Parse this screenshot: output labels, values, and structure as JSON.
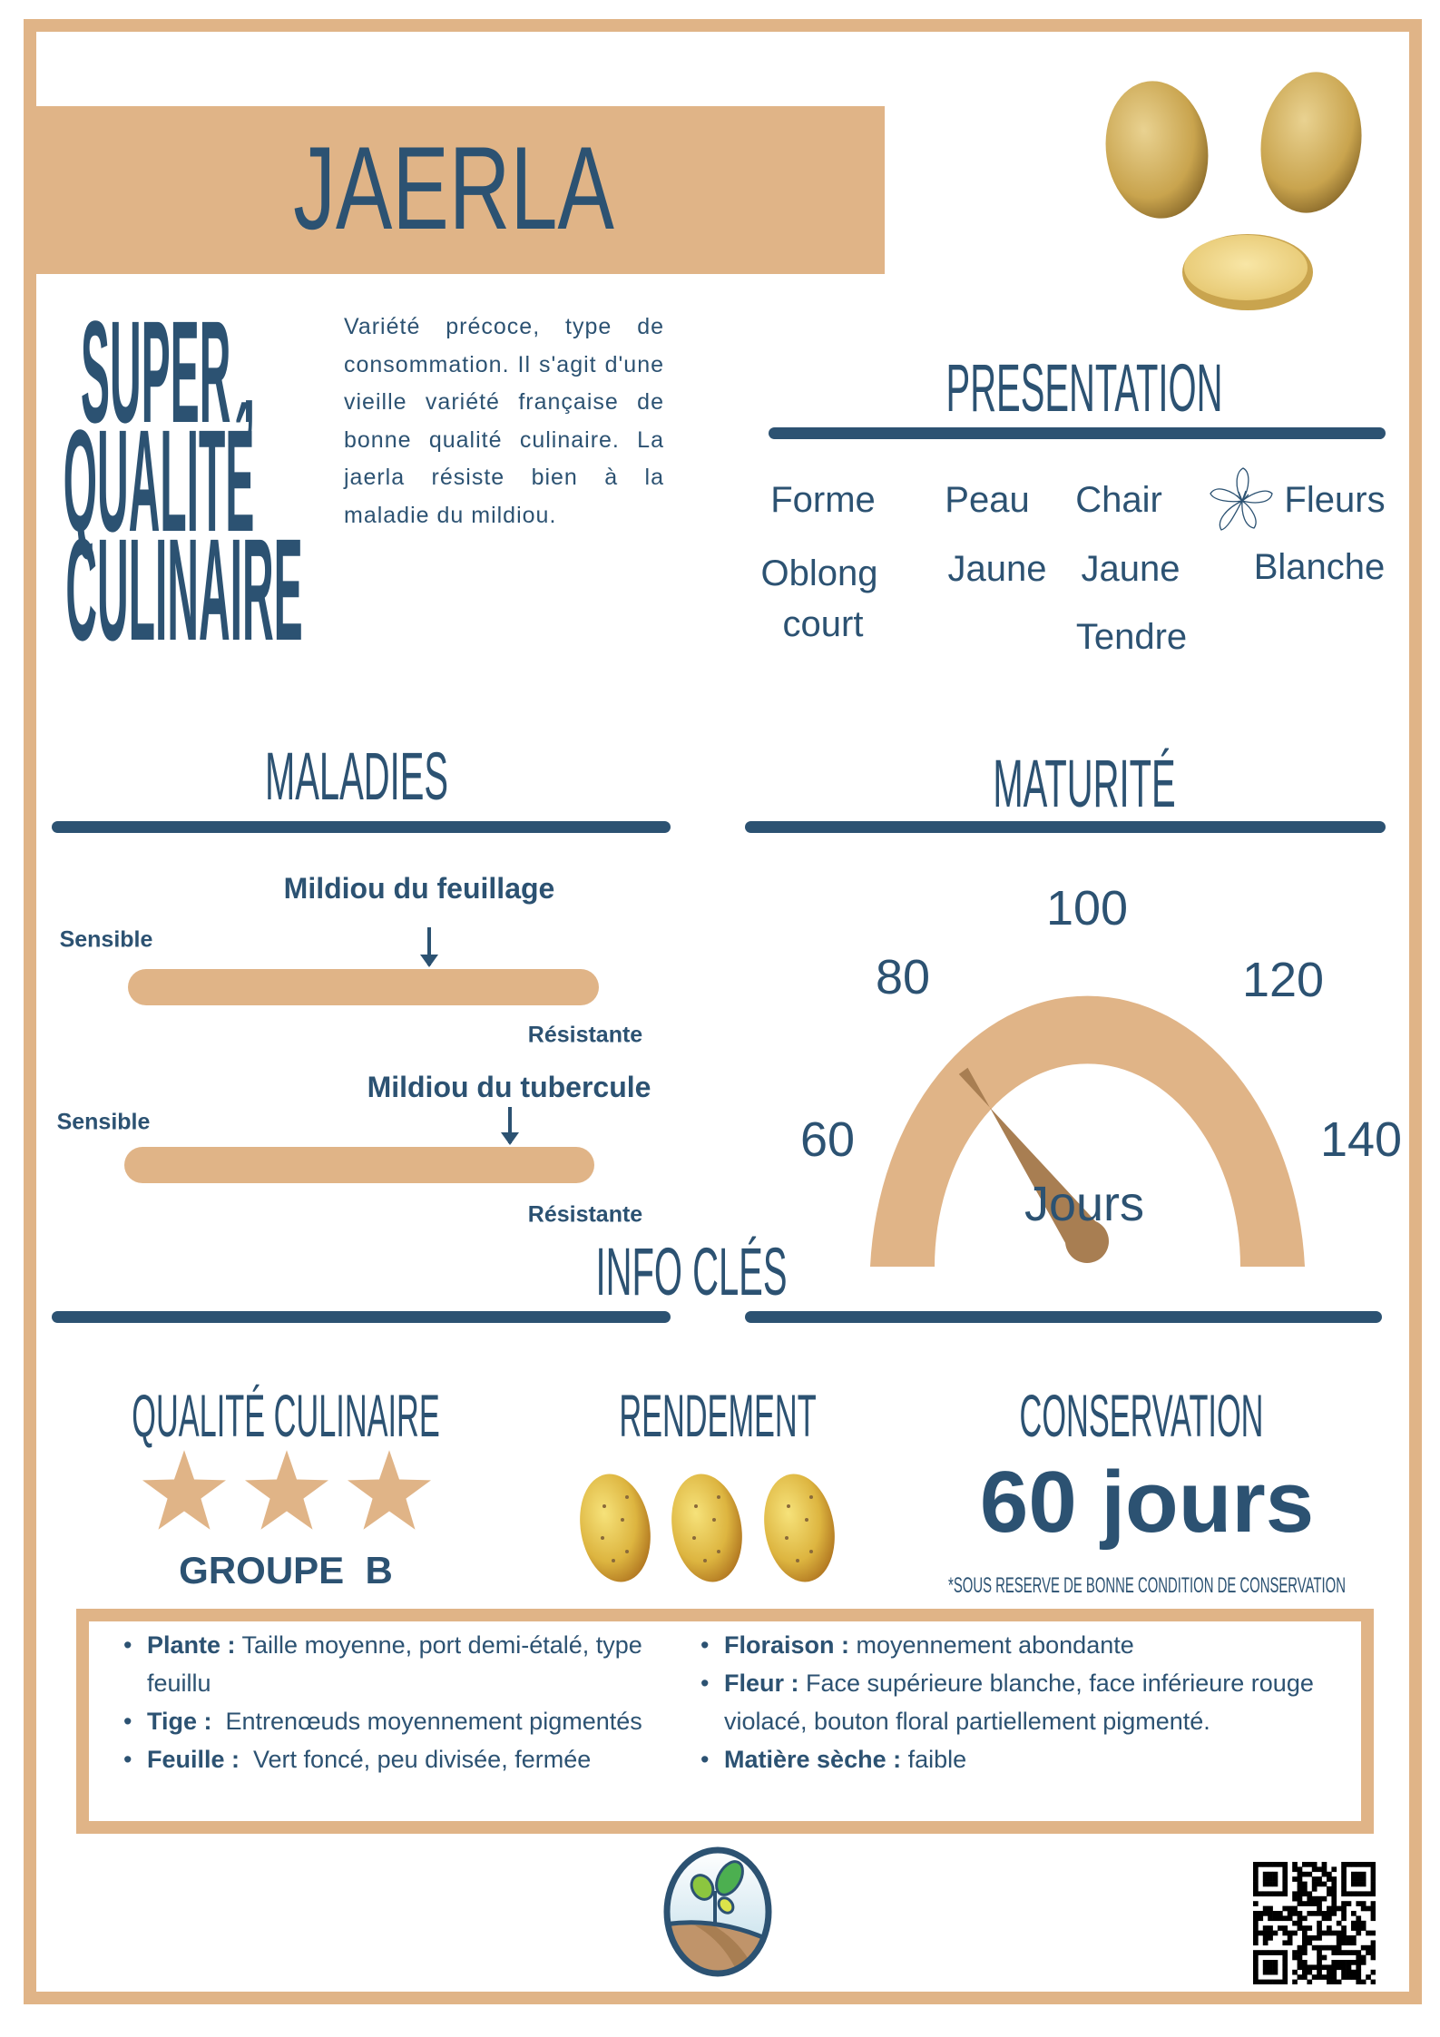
{
  "title": "JAERLA",
  "slogan": {
    "line1": "SUPER ,",
    "line2": "QUALITÉ",
    "line3": "CULINAIRE"
  },
  "description": "Variété précoce, type de consommation. Il s'agit d'une vieille variété française de bonne qualité culinaire. La jaerla résiste bien à la maladie du mildiou.",
  "presentation": {
    "heading": "PRESENTATION",
    "forme": {
      "label": "Forme",
      "value1": "Oblong",
      "value2": "court"
    },
    "peau": {
      "label": "Peau",
      "value1": "Jaune"
    },
    "chair": {
      "label": "Chair",
      "value1": "Jaune",
      "value2": "Tendre"
    },
    "fleurs": {
      "label": "Fleurs",
      "value1": "Blanche",
      "icon": "flower-icon"
    }
  },
  "maladies": {
    "heading": "MALADIES",
    "items": [
      {
        "name": "Mildiou du feuillage",
        "low": "Sensible",
        "high": "Résistante",
        "level": 0.64
      },
      {
        "name": "Mildiou du tubercule",
        "low": "Sensible",
        "high": "Résistante",
        "level": 0.82
      }
    ]
  },
  "maturite": {
    "heading": "MATURITÉ",
    "ticks": [
      "60",
      "80",
      "100",
      "120",
      "140"
    ],
    "min": 60,
    "max": 140,
    "value": 84,
    "unit": "Jours"
  },
  "info": {
    "heading": "INFO CLÉS",
    "qualite": {
      "label": "QUALITÉ CULINAIRE",
      "stars": 3,
      "group": "GROUPE  B"
    },
    "rendement": {
      "label": "RENDEMENT",
      "potatoes": 3
    },
    "conservation": {
      "label": "CONSERVATION",
      "value": "60 jours",
      "note": "*SOUS RESERVE DE BONNE CONDITION DE CONSERVATION"
    }
  },
  "details": {
    "left": [
      {
        "label": "Plante :",
        "text": " Taille moyenne, port demi-étalé, type feuillu"
      },
      {
        "label": "Tige :",
        "text": "  Entrenœuds moyennement pigmentés"
      },
      {
        "label": "Feuille :",
        "text": "  Vert foncé, peu divisée, fermée"
      }
    ],
    "right": [
      {
        "label": "Floraison :",
        "text": " moyennement abondante"
      },
      {
        "label": "Fleur :",
        "text": " Face supérieure blanche, face inférieure rouge violacé, bouton floral partiellement pigmenté."
      },
      {
        "label": "Matière sèche :",
        "text": " faible"
      }
    ]
  },
  "colors": {
    "navy": "#2c5272",
    "tan": "#e0b487",
    "needle": "#a87e52"
  }
}
